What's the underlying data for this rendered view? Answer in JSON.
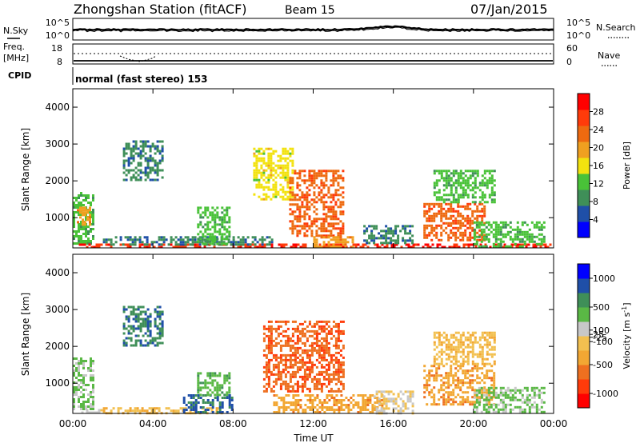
{
  "header": {
    "station": "Zhongshan Station (fitACF)",
    "beam": "Beam 15",
    "date": "07/Jan/2015"
  },
  "summary_panels": {
    "nsky_label": "N.Sky",
    "nsearch_label": "N.Search",
    "nsky_ticks": [
      "10^5",
      "10^0"
    ],
    "nsearch_ticks": [
      "10^5",
      "10^0"
    ],
    "freq_label_1": "Freq.",
    "freq_label_2": "[MHz]",
    "freq_ticks": [
      "18",
      "8"
    ],
    "nave_label": "Nave",
    "nave_ticks": [
      "60",
      "0"
    ],
    "cpid_label": "CPID",
    "cpid_text": "normal (fast stereo) 153"
  },
  "colors": {
    "power": [
      "#0000ff",
      "#1f4fa8",
      "#3f8f58",
      "#49c238",
      "#f2e20f",
      "#f0a020",
      "#ee6a10",
      "#ff3b0a",
      "#ff0000"
    ],
    "velocity": [
      "#ff0000",
      "#ff3b0a",
      "#ee7020",
      "#f2a733",
      "#f2c050",
      "#c8c8c8",
      "#5ab845",
      "#3f8f58",
      "#1f4fa8",
      "#0000ff"
    ]
  },
  "chart_data": [
    {
      "type": "heatmap",
      "name": "power",
      "ylabel": "Slant Range [km]",
      "y_ticks": [
        1000,
        2000,
        3000,
        4000
      ],
      "ylim": [
        180,
        4500
      ],
      "x_ticks": [
        "00:00",
        "04:00",
        "08:00",
        "12:00",
        "16:00",
        "20:00",
        "00:00"
      ],
      "xlim_hours": [
        0,
        24
      ],
      "colorbar_label": "Power [dB]",
      "colorbar_ticks": [
        4,
        8,
        12,
        16,
        20,
        24,
        28
      ],
      "colorbar_range": [
        0,
        32
      ],
      "patches": [
        {
          "t0": 0.0,
          "t1": 1.0,
          "r0": 300,
          "r1": 1700,
          "level": 12
        },
        {
          "t0": 0.2,
          "t1": 0.8,
          "r0": 800,
          "r1": 1300,
          "level": 20
        },
        {
          "t0": 0.3,
          "t1": 24.0,
          "r0": 180,
          "r1": 300,
          "level": 28
        },
        {
          "t0": 1.5,
          "t1": 10.0,
          "r0": 250,
          "r1": 500,
          "level": 8
        },
        {
          "t0": 2.5,
          "t1": 4.5,
          "r0": 2000,
          "r1": 3100,
          "level": 8
        },
        {
          "t0": 6.2,
          "t1": 7.8,
          "r0": 300,
          "r1": 1300,
          "level": 12
        },
        {
          "t0": 9.0,
          "t1": 11.0,
          "r0": 1500,
          "r1": 2900,
          "level": 16
        },
        {
          "t0": 10.8,
          "t1": 13.5,
          "r0": 500,
          "r1": 2300,
          "level": 24
        },
        {
          "t0": 12.0,
          "t1": 14.0,
          "r0": 200,
          "r1": 500,
          "level": 20
        },
        {
          "t0": 14.5,
          "t1": 17.0,
          "r0": 300,
          "r1": 800,
          "level": 8
        },
        {
          "t0": 17.5,
          "t1": 20.5,
          "r0": 400,
          "r1": 1400,
          "level": 24
        },
        {
          "t0": 18.0,
          "t1": 21.0,
          "r0": 1400,
          "r1": 2300,
          "level": 12
        },
        {
          "t0": 20.0,
          "t1": 23.5,
          "r0": 200,
          "r1": 900,
          "level": 12
        }
      ]
    },
    {
      "type": "heatmap",
      "name": "velocity",
      "ylabel": "Slant Range [km]",
      "y_ticks": [
        1000,
        2000,
        3000,
        4000
      ],
      "ylim": [
        180,
        4500
      ],
      "x_ticks": [
        "00:00",
        "04:00",
        "08:00",
        "12:00",
        "16:00",
        "20:00",
        "00:00"
      ],
      "xlim_hours": [
        0,
        24
      ],
      "xlabel": "Time UT",
      "colorbar_label": "Velocity [m s^-1]",
      "colorbar_ticks": [
        -1000,
        -500,
        -100,
        -25,
        25,
        100,
        500,
        1000
      ],
      "colorbar_tick_labels": [
        "-1000",
        "-500",
        "-100",
        "-25",
        "25",
        "100",
        "500",
        "1000"
      ],
      "colorbar_range": [
        -1250,
        1250
      ],
      "patches": [
        {
          "t0": 0.0,
          "t1": 1.0,
          "r0": 300,
          "r1": 1700,
          "level": 300
        },
        {
          "t0": 0.3,
          "t1": 1.5,
          "r0": 200,
          "r1": 300,
          "level": 50
        },
        {
          "t0": 1.5,
          "t1": 7.5,
          "r0": 200,
          "r1": 350,
          "level": -200
        },
        {
          "t0": 2.5,
          "t1": 4.5,
          "r0": 2000,
          "r1": 3100,
          "level": 700
        },
        {
          "t0": 5.5,
          "t1": 8.0,
          "r0": 200,
          "r1": 700,
          "level": 800
        },
        {
          "t0": 6.2,
          "t1": 7.8,
          "r0": 700,
          "r1": 1300,
          "level": 400
        },
        {
          "t0": 9.5,
          "t1": 13.5,
          "r0": 800,
          "r1": 2700,
          "level": -700
        },
        {
          "t0": 10.0,
          "t1": 15.5,
          "r0": 200,
          "r1": 700,
          "level": -400
        },
        {
          "t0": 15.0,
          "t1": 17.0,
          "r0": 200,
          "r1": 800,
          "level": 10
        },
        {
          "t0": 17.5,
          "t1": 21.0,
          "r0": 400,
          "r1": 1500,
          "level": -400
        },
        {
          "t0": 18.0,
          "t1": 21.0,
          "r0": 1500,
          "r1": 2400,
          "level": -200
        },
        {
          "t0": 20.0,
          "t1": 23.5,
          "r0": 200,
          "r1": 900,
          "level": 300
        }
      ]
    }
  ]
}
